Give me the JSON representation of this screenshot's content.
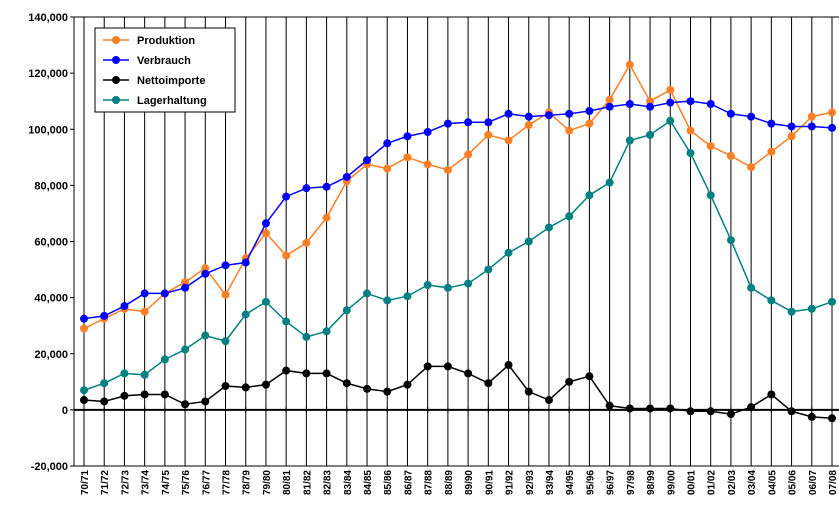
{
  "chart_data": {
    "type": "line",
    "categories": [
      "70/71",
      "71/72",
      "72/73",
      "73/74",
      "74/75",
      "75/76",
      "76/77",
      "77/78",
      "78/79",
      "79/80",
      "80/81",
      "81/82",
      "82/83",
      "83/84",
      "84/85",
      "85/86",
      "86/87",
      "87/88",
      "88/89",
      "89/90",
      "90/91",
      "91/92",
      "92/93",
      "93/94",
      "94/95",
      "95/96",
      "96/97",
      "97/98",
      "98/99",
      "99/00",
      "00/01",
      "01/02",
      "02/03",
      "03/04",
      "04/05",
      "05/06",
      "06/07",
      "07/08"
    ],
    "series": [
      {
        "name": "Produktion",
        "color": "#ff7f27",
        "values": [
          29000,
          32500,
          36000,
          35000,
          41500,
          45500,
          50500,
          41000,
          54000,
          63000,
          55000,
          59500,
          68500,
          81500,
          87500,
          86000,
          90000,
          87500,
          85500,
          91000,
          98000,
          96000,
          101500,
          106000,
          99500,
          102000,
          110500,
          123000,
          110000,
          114000,
          99500,
          94000,
          90500,
          86500,
          92000,
          97500,
          104500,
          106000
        ]
      },
      {
        "name": "Verbrauch",
        "color": "#0000ff",
        "values": [
          32500,
          33500,
          37000,
          41500,
          41500,
          43500,
          48500,
          51500,
          52500,
          66500,
          76000,
          79000,
          79500,
          83000,
          89000,
          95000,
          97500,
          99000,
          102000,
          102500,
          102500,
          105500,
          104500,
          105000,
          105500,
          106500,
          108000,
          109000,
          108000,
          109500,
          110000,
          109000,
          105500,
          104500,
          102000,
          101000,
          101000,
          100500
        ]
      },
      {
        "name": "Nettoimporte",
        "color": "#000000",
        "values": [
          3500,
          3000,
          5000,
          5500,
          5500,
          2000,
          3000,
          8500,
          8000,
          9000,
          14000,
          13000,
          13000,
          9500,
          7500,
          6500,
          9000,
          15500,
          15500,
          13000,
          9500,
          16000,
          6500,
          3500,
          10000,
          12000,
          1500,
          500,
          500,
          500,
          -500,
          -500,
          -1500,
          1000,
          5500,
          -500,
          -2500,
          -3000
        ]
      },
      {
        "name": "Lagerhaltung",
        "color": "#008080",
        "values": [
          7000,
          9500,
          13000,
          12500,
          18000,
          21500,
          26500,
          24500,
          34000,
          38500,
          31500,
          26000,
          28000,
          35500,
          41500,
          39000,
          40500,
          44500,
          43500,
          45000,
          50000,
          56000,
          60000,
          65000,
          69000,
          76500,
          81000,
          96000,
          98000,
          103000,
          91500,
          76500,
          60500,
          43500,
          39000,
          35000,
          36000,
          38500
        ]
      }
    ],
    "ylim": [
      -20000,
      140000
    ],
    "yticks": [
      {
        "value": -20000,
        "label": "-20,000"
      },
      0,
      {
        "value": 20000,
        "label": "20,000"
      },
      {
        "value": 40000,
        "label": "40,000"
      },
      {
        "value": 60000,
        "label": "60,000"
      },
      {
        "value": 80000,
        "label": "80,000"
      },
      {
        "value": 100000,
        "label": "100,000"
      },
      {
        "value": 120000,
        "label": "120,000"
      },
      {
        "value": 140000,
        "label": "140,000"
      }
    ],
    "grid": true,
    "legend": "top-left"
  }
}
